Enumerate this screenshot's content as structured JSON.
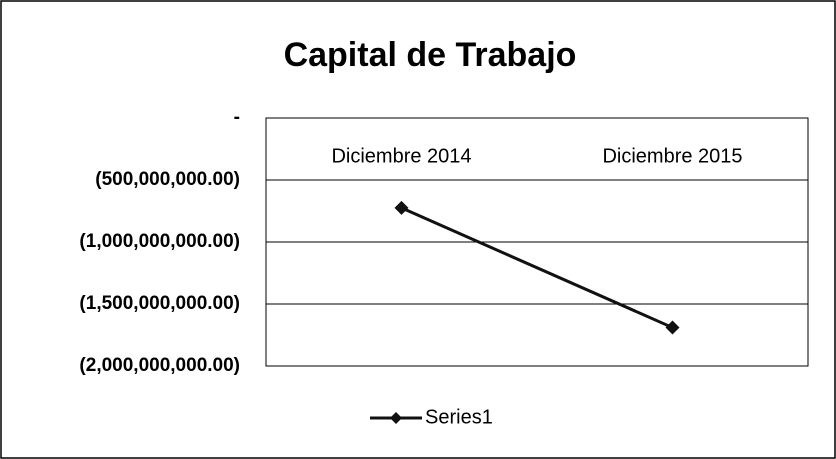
{
  "chart_data": {
    "type": "line",
    "title": "Capital de Trabajo",
    "categories": [
      "Diciembre 2014",
      "Diciembre 2015"
    ],
    "series": [
      {
        "name": "Series1",
        "color": "#111111",
        "values": [
          -725000000,
          -1690000000
        ]
      }
    ],
    "ylim": [
      -2000000000,
      0
    ],
    "yticks": [
      {
        "value": 0,
        "label": "-"
      },
      {
        "value": -500000000,
        "label": "(500,000,000.00)"
      },
      {
        "value": -1000000000,
        "label": "(1,000,000,000.00)"
      },
      {
        "value": -1500000000,
        "label": "(1,500,000,000.00)"
      },
      {
        "value": -2000000000,
        "label": "(2,000,000,000.00)"
      }
    ],
    "grid": true,
    "legend": "bottom"
  }
}
